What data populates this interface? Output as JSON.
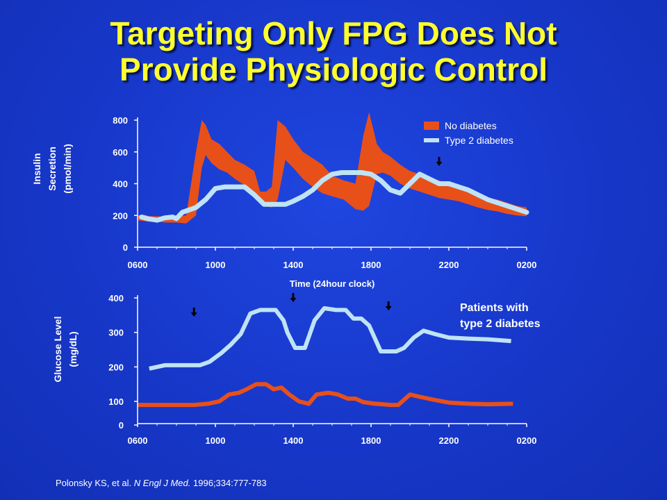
{
  "slide": {
    "title_line1": "Targeting Only FPG Does Not",
    "title_line2": "Provide Physiologic Control",
    "citation_authors": "Polonsky KS, et al. ",
    "citation_journal": "N Engl J Med.",
    "citation_rest": " 1996;334:777-783",
    "colors": {
      "background": "#1737c9",
      "title": "#ffff2e",
      "orange": "#e8501a",
      "lightblue": "#bfe3f5"
    }
  },
  "chart_data": [
    {
      "type": "area",
      "title": "",
      "ylabel": "Insulin Secretion (pmol/min)",
      "ylabel_lines": [
        "Insulin",
        "Secretion",
        "(pmol/min)"
      ],
      "xlabel": "Time (24hour clock)",
      "x_ticks": [
        "0600",
        "1000",
        "1400",
        "1800",
        "2200",
        "0200"
      ],
      "y_ticks": [
        "0",
        "200",
        "400",
        "600",
        "800"
      ],
      "ylim": [
        0,
        800
      ],
      "xlim_hours": [
        6,
        26
      ],
      "legend": [
        {
          "label": "No diabetes",
          "color": "#e8501a",
          "style": "band"
        },
        {
          "label": "Type 2 diabetes",
          "color": "#bfe3f5",
          "style": "line"
        }
      ],
      "legend_position": "top-right",
      "meal_markers": [
        {
          "x": 21.5
        }
      ],
      "series": [
        {
          "name": "No diabetes",
          "kind": "band",
          "x": [
            6,
            6.3,
            6.6,
            7,
            7.5,
            8,
            8.5,
            9,
            9.3,
            9.5,
            9.8,
            10.2,
            10.6,
            11,
            11.5,
            12,
            12.3,
            12.6,
            12.9,
            13.2,
            13.6,
            14,
            14.5,
            15,
            15.5,
            16,
            16.6,
            17.2,
            17.6,
            17.9,
            18.3,
            18.6,
            19,
            19.5,
            20,
            20.5,
            21,
            21.5,
            22,
            22.5,
            23,
            23.5,
            24,
            24.5,
            25,
            25.5,
            26
          ],
          "upper": [
            200,
            205,
            195,
            195,
            190,
            195,
            200,
            600,
            800,
            770,
            680,
            650,
            600,
            550,
            520,
            480,
            350,
            350,
            380,
            800,
            760,
            680,
            600,
            560,
            520,
            450,
            420,
            400,
            700,
            850,
            650,
            600,
            570,
            520,
            480,
            460,
            440,
            420,
            400,
            380,
            350,
            330,
            310,
            300,
            280,
            260,
            250
          ],
          "lower": [
            170,
            165,
            160,
            160,
            155,
            155,
            150,
            200,
            500,
            580,
            530,
            490,
            470,
            430,
            390,
            340,
            280,
            260,
            250,
            300,
            550,
            500,
            430,
            380,
            340,
            320,
            300,
            240,
            230,
            260,
            460,
            470,
            450,
            400,
            370,
            350,
            330,
            310,
            300,
            290,
            270,
            250,
            235,
            225,
            210,
            200,
            195
          ]
        },
        {
          "name": "Type 2 diabetes",
          "kind": "line",
          "x": [
            6.2,
            6.5,
            7,
            7.4,
            7.8,
            8,
            8.3,
            9,
            9.5,
            10,
            10.5,
            11,
            11.5,
            12,
            12.5,
            13,
            13.6,
            14,
            14.5,
            15,
            15.5,
            16,
            16.5,
            17,
            17.5,
            18,
            18.5,
            19,
            19.5,
            20,
            20.5,
            21,
            21.5,
            22,
            22.5,
            23,
            23.5,
            24,
            24.5,
            25,
            25.5,
            26
          ],
          "y": [
            190,
            180,
            170,
            185,
            190,
            180,
            220,
            250,
            300,
            370,
            380,
            380,
            380,
            330,
            270,
            270,
            270,
            290,
            320,
            360,
            420,
            460,
            470,
            470,
            470,
            460,
            420,
            360,
            340,
            400,
            460,
            430,
            400,
            400,
            380,
            360,
            330,
            300,
            280,
            260,
            240,
            220
          ]
        }
      ]
    },
    {
      "type": "line",
      "title": "",
      "ylabel": "Glucose Level (mg/dL)",
      "ylabel_lines": [
        "Glucose Level",
        "(mg/dL)"
      ],
      "xlabel": "",
      "x_ticks": [
        "0600",
        "1000",
        "1400",
        "1800",
        "2200",
        "0200"
      ],
      "y_ticks": [
        "0",
        "100",
        "200",
        "300",
        "400"
      ],
      "ylim": [
        0,
        400
      ],
      "xlim_hours": [
        6,
        26
      ],
      "annotation_lines": [
        "Patients with",
        "type 2 diabetes"
      ],
      "meal_markers": [
        {
          "x": 8.9
        },
        {
          "x": 14
        },
        {
          "x": 18.9
        }
      ],
      "series": [
        {
          "name": "Type 2 diabetes",
          "color": "#bfe3f5",
          "x": [
            6.6,
            7.4,
            8.2,
            8.8,
            9.2,
            9.7,
            10.3,
            10.8,
            11.3,
            11.8,
            12.3,
            12.7,
            13.1,
            13.5,
            13.7,
            14.1,
            14.6,
            15.1,
            15.6,
            16.2,
            16.7,
            17.1,
            17.5,
            17.9,
            18.5,
            18.9,
            19.3,
            19.7,
            20.2,
            20.7,
            21.3,
            22,
            23,
            24,
            25.2
          ],
          "y": [
            195,
            205,
            205,
            205,
            205,
            215,
            240,
            265,
            295,
            355,
            365,
            365,
            365,
            335,
            300,
            255,
            255,
            335,
            370,
            365,
            365,
            340,
            340,
            320,
            245,
            245,
            245,
            255,
            285,
            305,
            295,
            285,
            282,
            280,
            275
          ]
        },
        {
          "name": "No diabetes",
          "color": "#e8501a",
          "x": [
            6,
            6.8,
            7.5,
            8.2,
            8.9,
            9.6,
            10.2,
            10.7,
            11.2,
            11.6,
            12.1,
            12.6,
            13,
            13.4,
            13.8,
            14.3,
            14.8,
            15.2,
            15.8,
            16.3,
            16.8,
            17.2,
            17.6,
            18.2,
            18.6,
            19,
            19.4,
            20,
            20.6,
            21.2,
            22,
            23,
            24,
            25.3
          ],
          "y": [
            85,
            85,
            85,
            85,
            85,
            90,
            100,
            120,
            125,
            135,
            150,
            150,
            135,
            140,
            120,
            100,
            90,
            120,
            125,
            120,
            108,
            108,
            97,
            90,
            88,
            85,
            85,
            120,
            112,
            105,
            95,
            90,
            88,
            90
          ]
        }
      ]
    }
  ]
}
